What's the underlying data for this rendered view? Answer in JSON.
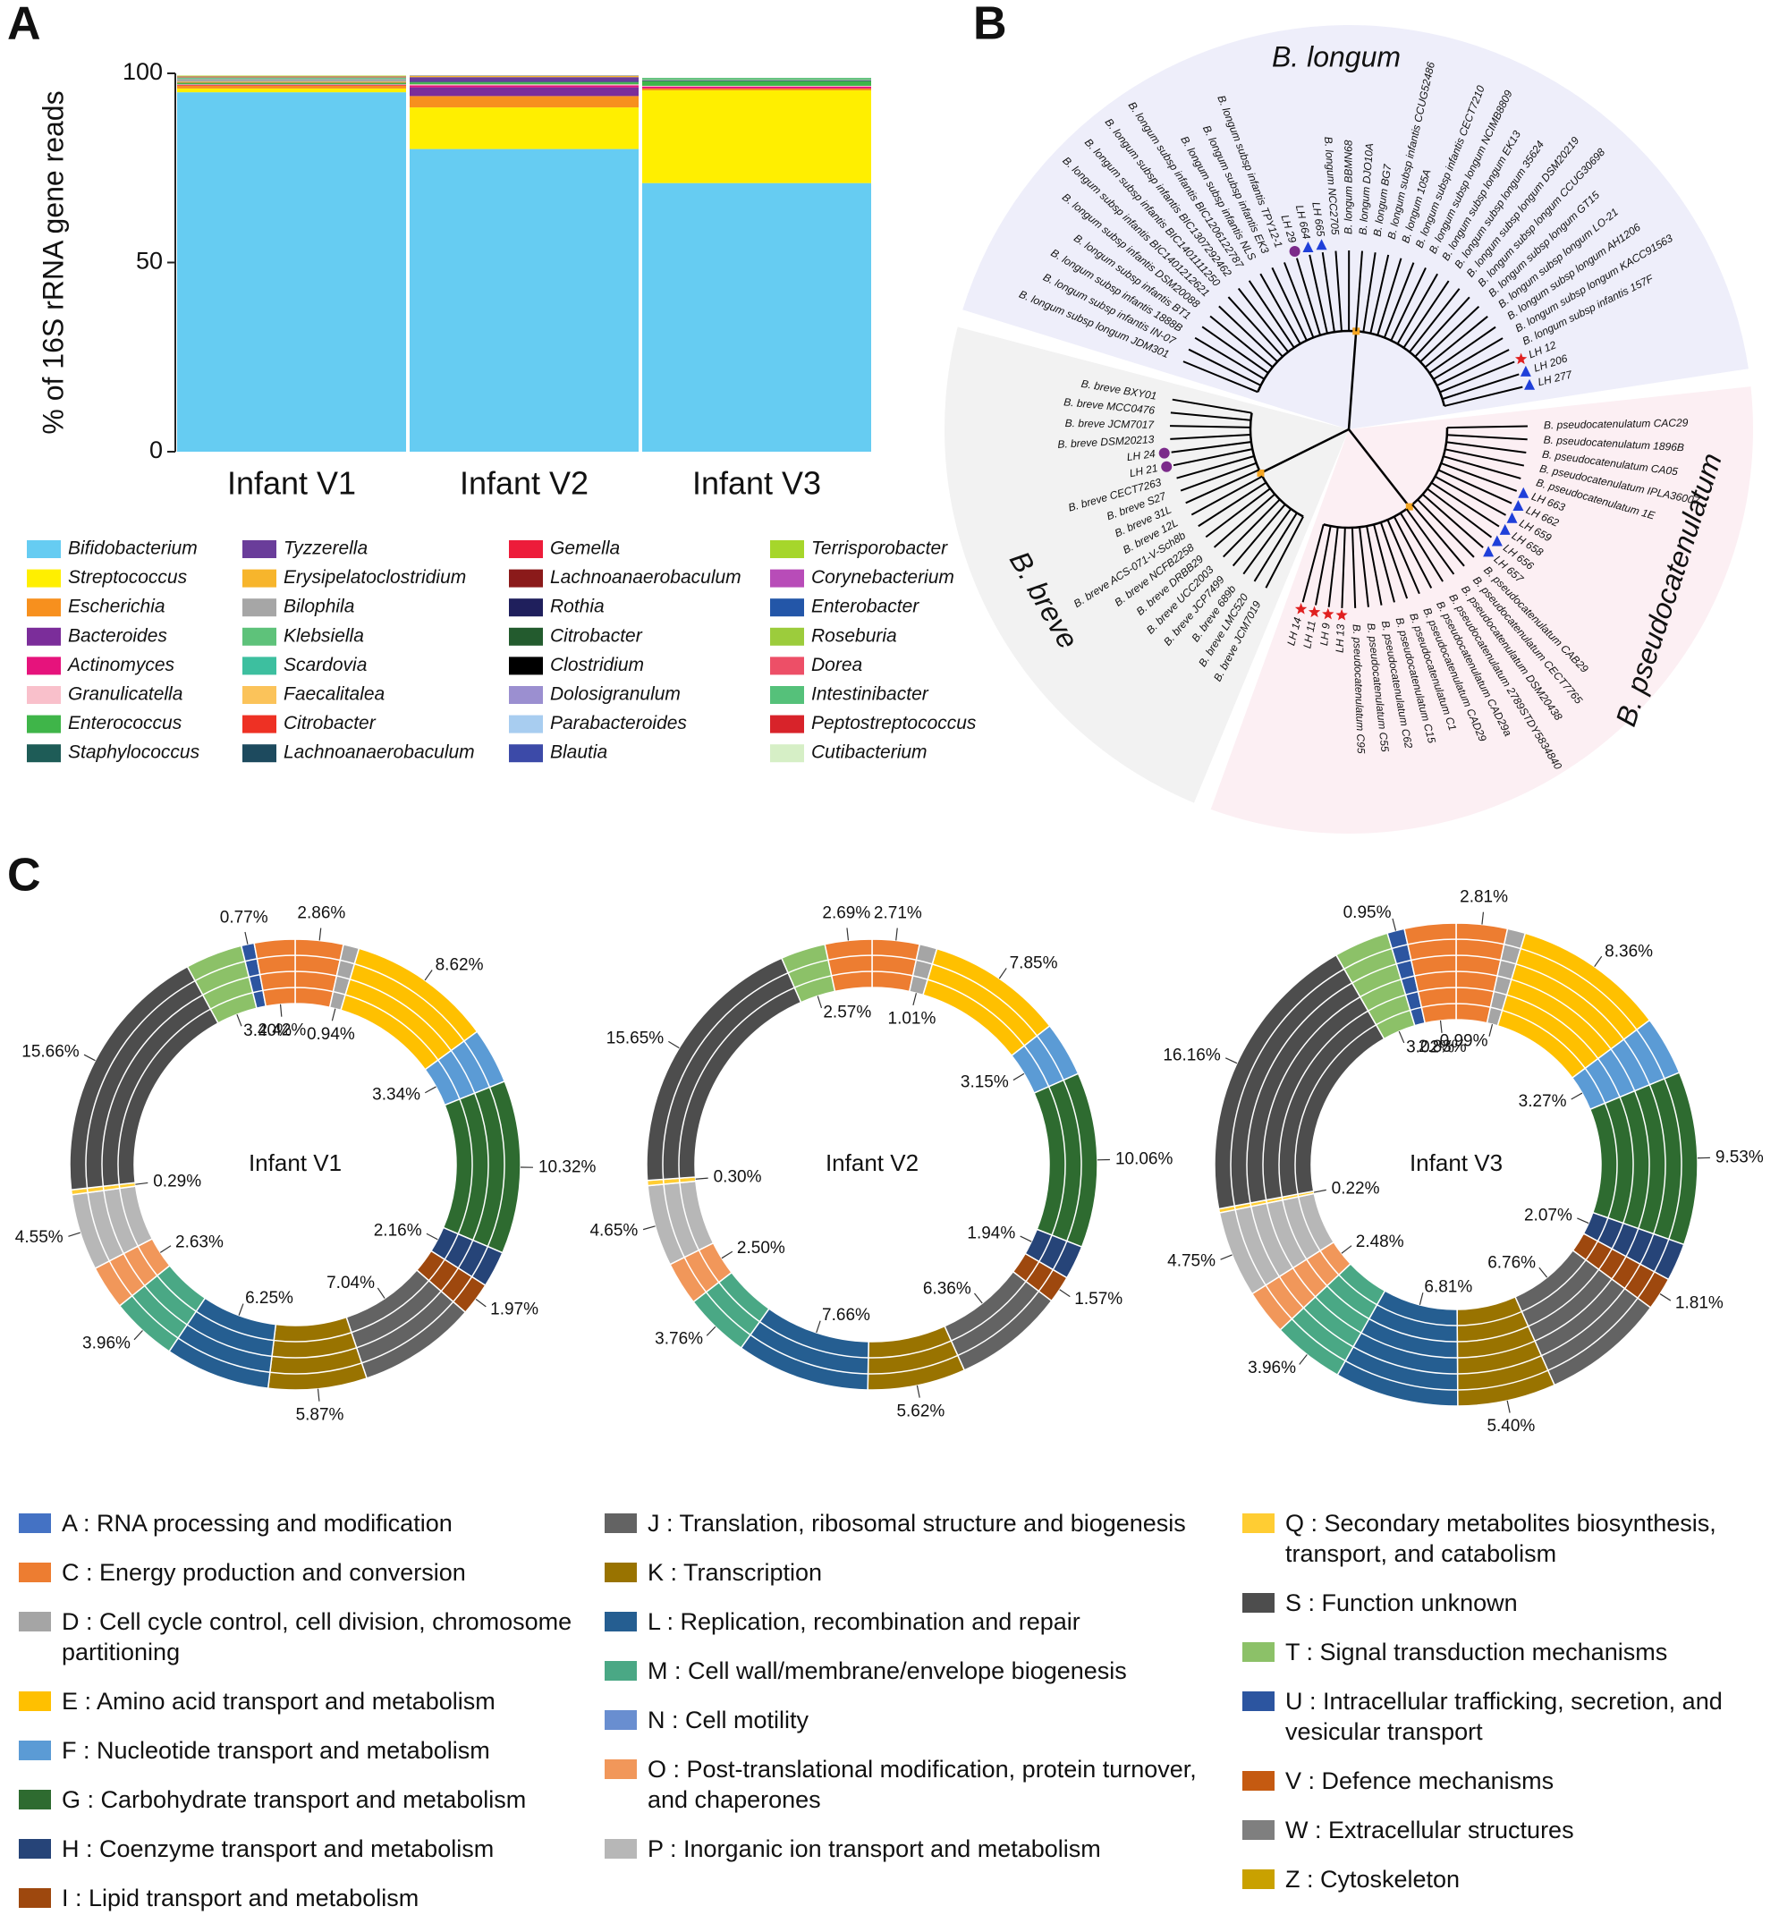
{
  "panel_labels": [
    "A",
    "B",
    "C"
  ],
  "chart_data": [
    {
      "type": "stacked_bar",
      "ylabel": "% of 16S rRNA gene reads",
      "categories": [
        "Infant V1",
        "Infant V2",
        "Infant V3"
      ],
      "ylim": [
        0,
        100
      ],
      "yticks": [
        0,
        50,
        100
      ],
      "series": [
        {
          "name": "Bifidobacterium",
          "color": "#66ccf2",
          "values": [
            95,
            80,
            71
          ]
        },
        {
          "name": "Streptococcus",
          "color": "#ffef00",
          "values": [
            1,
            11,
            24.5
          ]
        },
        {
          "name": "Escherichia",
          "color": "#f7901e",
          "values": [
            0.8,
            3,
            0.5
          ]
        },
        {
          "name": "Bacteroides",
          "color": "#7b2d9a",
          "values": [
            0,
            2.3,
            0
          ]
        },
        {
          "name": "Actinomyces",
          "color": "#e6137c",
          "values": [
            0.2,
            0.5,
            0.5
          ]
        },
        {
          "name": "Granulicatella",
          "color": "#f9c0cb",
          "values": [
            0.1,
            0.3,
            0.2
          ]
        },
        {
          "name": "Enterococcus",
          "color": "#3fb549",
          "values": [
            0.3,
            0.5,
            1.2
          ]
        },
        {
          "name": "Staphylococcus",
          "color": "#1e5c57",
          "values": [
            0.1,
            0.2,
            0.2
          ]
        },
        {
          "name": "Tyzzerella",
          "color": "#6a3d9a",
          "values": [
            0,
            1.2,
            0
          ]
        },
        {
          "name": "Erysipelatoclostridium",
          "color": "#f7b52c",
          "values": [
            0.3,
            0.3,
            0
          ]
        },
        {
          "name": "Bilophila",
          "color": "#a6a6a6",
          "values": [
            0.7,
            0.2,
            0.2
          ]
        },
        {
          "name": "Klebsiella",
          "color": "#5ec27a",
          "values": [
            0.2,
            0,
            0.5
          ]
        },
        {
          "name": "Scardovia",
          "color": "#3dbf9f",
          "values": [
            0.1,
            0,
            0
          ]
        },
        {
          "name": "Faecalitalea",
          "color": "#fbc35a",
          "values": [
            0.1,
            0,
            0
          ]
        },
        {
          "name": "Citrobacter",
          "color": "#ee3124",
          "values": [
            0.1,
            0,
            0
          ]
        },
        {
          "name": "Lachnoanaerobaculum",
          "color": "#1d4a5e",
          "values": [
            0.1,
            0,
            0
          ]
        },
        {
          "name": "Gemella",
          "color": "#ed1c3a",
          "values": [
            0.1,
            0,
            0
          ]
        },
        {
          "name": "Lachnoanaerobaculum",
          "color": "#8b1a1a",
          "values": [
            0,
            0,
            0
          ]
        },
        {
          "name": "Rothia",
          "color": "#1f1f5c",
          "values": [
            0,
            0,
            0
          ]
        },
        {
          "name": "Citrobacter",
          "color": "#235b2e",
          "values": [
            0,
            0,
            0
          ]
        },
        {
          "name": "Clostridium",
          "color": "#000000",
          "values": [
            0,
            0,
            0
          ]
        },
        {
          "name": "Dolosigranulum",
          "color": "#9b8fd0",
          "values": [
            0,
            0,
            0
          ]
        },
        {
          "name": "Parabacteroides",
          "color": "#a8cdf0",
          "values": [
            0,
            0,
            0
          ]
        },
        {
          "name": "Blautia",
          "color": "#3c4aa8",
          "values": [
            0,
            0,
            0
          ]
        },
        {
          "name": "Terrisporobacter",
          "color": "#a6d62b",
          "values": [
            0.2,
            0,
            0
          ]
        },
        {
          "name": "Corynebacterium",
          "color": "#b84cb8",
          "values": [
            0,
            0,
            0
          ]
        },
        {
          "name": "Enterobacter",
          "color": "#2356a8",
          "values": [
            0,
            0,
            0
          ]
        },
        {
          "name": "Roseburia",
          "color": "#9ccc3c",
          "values": [
            0,
            0,
            0
          ]
        },
        {
          "name": "Dorea",
          "color": "#ed4f67",
          "values": [
            0,
            0,
            0
          ]
        },
        {
          "name": "Intestinibacter",
          "color": "#55c17a",
          "values": [
            0,
            0,
            0
          ]
        },
        {
          "name": "Peptostreptococcus",
          "color": "#d8232a",
          "values": [
            0,
            0,
            0
          ]
        },
        {
          "name": "Cutibacterium",
          "color": "#d6efc6",
          "values": [
            0,
            0,
            0
          ]
        }
      ]
    },
    {
      "type": "donut",
      "title": "Infant V1",
      "rings": 4,
      "values": [
        2.86,
        0.94,
        8.62,
        3.34,
        10.32,
        2.16,
        1.97,
        7.04,
        5.87,
        6.25,
        3.96,
        2.63,
        4.55,
        0.29,
        15.66,
        3.4,
        0.77,
        2.42
      ],
      "value_labels": [
        "2.86%",
        "0.94%",
        "8.62%",
        "3.34%",
        "10.32%",
        "2.16%",
        "1.97%",
        "7.04%",
        "5.87%",
        "6.25%",
        "3.96%",
        "2.63%",
        "4.55%",
        "0.29%",
        "15.66%",
        "3.40%",
        "0.77%",
        "2.42%"
      ],
      "colors": [
        "#ed7d31",
        "#a5a5a5",
        "#ffc000",
        "#5b9bd5",
        "#2e6b30",
        "#264478",
        "#9e480e",
        "#636363",
        "#997300",
        "#255e91",
        "#4aa885",
        "#f1975a",
        "#b7b7b7",
        "#ffcd33",
        "#4d4d4d",
        "#8cc168",
        "#2c55a0",
        "#ed7d31"
      ]
    },
    {
      "type": "donut",
      "title": "Infant V2",
      "rings": 3,
      "values": [
        2.71,
        1.01,
        7.85,
        3.15,
        10.06,
        1.94,
        1.57,
        6.36,
        5.62,
        7.66,
        3.76,
        2.5,
        4.65,
        0.3,
        15.65,
        2.57,
        2.69
      ],
      "value_labels": [
        "2.71%",
        "1.01%",
        "7.85%",
        "3.15%",
        "10.06%",
        "1.94%",
        "1.57%",
        "6.36%",
        "5.62%",
        "7.66%",
        "3.76%",
        "2.50%",
        "4.65%",
        "0.30%",
        "15.65%",
        "2.57%",
        "2.69%"
      ],
      "colors": [
        "#ed7d31",
        "#a5a5a5",
        "#ffc000",
        "#5b9bd5",
        "#2e6b30",
        "#264478",
        "#9e480e",
        "#636363",
        "#997300",
        "#255e91",
        "#4aa885",
        "#f1975a",
        "#b7b7b7",
        "#ffcd33",
        "#4d4d4d",
        "#8cc168",
        "#ed7d31"
      ]
    },
    {
      "type": "donut",
      "title": "Infant V3",
      "rings": 6,
      "values": [
        2.81,
        0.99,
        8.36,
        3.27,
        9.53,
        2.07,
        1.81,
        6.76,
        5.4,
        6.81,
        3.96,
        2.48,
        4.75,
        0.22,
        16.16,
        3.02,
        0.95,
        2.83
      ],
      "value_labels": [
        "2.81%",
        "0.99%",
        "8.36%",
        "3.27%",
        "9.53%",
        "2.07%",
        "1.81%",
        "6.76%",
        "5.40%",
        "6.81%",
        "3.96%",
        "2.48%",
        "4.75%",
        "0.22%",
        "16.16%",
        "3.02%",
        "0.95%",
        "2.83%"
      ],
      "colors": [
        "#ed7d31",
        "#a5a5a5",
        "#ffc000",
        "#5b9bd5",
        "#2e6b30",
        "#264478",
        "#9e480e",
        "#636363",
        "#997300",
        "#255e91",
        "#4aa885",
        "#f1975a",
        "#b7b7b7",
        "#ffcd33",
        "#4d4d4d",
        "#8cc168",
        "#2c55a0",
        "#ed7d31"
      ]
    }
  ],
  "tree": {
    "clades": [
      {
        "name": "B. pseudocatenulatum",
        "color": "#fcefF3",
        "leaves": [
          {
            "label": "B. pseudocatenulatum CAC29"
          },
          {
            "label": "B. pseudocatenulatum 1896B"
          },
          {
            "label": "B. pseudocatenulatum CA05"
          },
          {
            "label": "B. pseudocatenulatum IPLA36007"
          },
          {
            "label": "B. pseudocatenulatum 1E"
          },
          {
            "label": "LH 663",
            "marker": "triangle"
          },
          {
            "label": "LH 662",
            "marker": "triangle"
          },
          {
            "label": "LH 659",
            "marker": "triangle"
          },
          {
            "label": "LH 658",
            "marker": "triangle"
          },
          {
            "label": "LH 656",
            "marker": "triangle"
          },
          {
            "label": "LH 657",
            "marker": "triangle"
          },
          {
            "label": "B. pseudocatenulatum CAB29"
          },
          {
            "label": "B. pseudocatenulatum CECT7765"
          },
          {
            "label": "B. pseudocatenulatum DSM20438"
          },
          {
            "label": "B. pseudocatenulatum 2789STDY5834840"
          },
          {
            "label": "B. pseudocatenulatum CAD29a"
          },
          {
            "label": "B. pseudocatenulatum CAD29"
          },
          {
            "label": "B. pseudocatenulatum C1"
          },
          {
            "label": "B. pseudocatenulatum C15"
          },
          {
            "label": "B. pseudocatenulatum C62"
          },
          {
            "label": "B. pseudocatenulatum C55"
          },
          {
            "label": "B. pseudocatenulatum C95"
          },
          {
            "label": "LH 13",
            "marker": "star"
          },
          {
            "label": "LH 9",
            "marker": "star"
          },
          {
            "label": "LH 11",
            "marker": "star"
          },
          {
            "label": "LH 14",
            "marker": "star"
          }
        ]
      },
      {
        "name": "B. breve",
        "color": "#f2f2f2",
        "leaves": [
          {
            "label": "B. breve JCM7019"
          },
          {
            "label": "B. breve LMC520"
          },
          {
            "label": "B. breve 689b"
          },
          {
            "label": "B. breve JCP7499"
          },
          {
            "label": "B. breve UCC2003"
          },
          {
            "label": "B. breve DRBB29"
          },
          {
            "label": "B. breve NCFB2258"
          },
          {
            "label": "B. breve ACS-071-V-Sch8b"
          },
          {
            "label": "B. breve 12L"
          },
          {
            "label": "B. breve 31L"
          },
          {
            "label": "B. breve S27"
          },
          {
            "label": "B. breve CECT7263"
          },
          {
            "label": "LH 21",
            "marker": "circle"
          },
          {
            "label": "LH 24",
            "marker": "circle"
          },
          {
            "label": "B. breve DSM20213"
          },
          {
            "label": "B. breve JCM7017"
          },
          {
            "label": "B. breve MCC0476"
          },
          {
            "label": "B. breve BXY01"
          }
        ]
      },
      {
        "name": "B. longum",
        "color": "#eeeefa",
        "leaves": [
          {
            "label": "B. longum subsp longum JDM301"
          },
          {
            "label": "B. longum subsp infantis IN-07"
          },
          {
            "label": "B. longum subsp infantis 1888B"
          },
          {
            "label": "B. longum subsp infantis BT1"
          },
          {
            "label": "B. longum subsp infantis DSM20088"
          },
          {
            "label": "B. longum subsp infantis BIC1401212621"
          },
          {
            "label": "B. longum subsp infantis BIC1401111250"
          },
          {
            "label": "B. longum subsp infantis BIC1307292462"
          },
          {
            "label": "B. longum subsp infantis BIC1206122787"
          },
          {
            "label": "B. longum subsp infantis NLS"
          },
          {
            "label": "B. longum subsp infantis EK3"
          },
          {
            "label": "B. longum subsp infantis TPY12-1"
          },
          {
            "label": "LH 29",
            "marker": "circle"
          },
          {
            "label": "LH 664",
            "marker": "triangle"
          },
          {
            "label": "LH 665",
            "marker": "triangle"
          },
          {
            "label": "B. longum NCC2705"
          },
          {
            "label": "B. longum BBMN68"
          },
          {
            "label": "B. longum DJO10A"
          },
          {
            "label": "B. longum BG7"
          },
          {
            "label": "B. longum subsp infantis CCUG52486"
          },
          {
            "label": "B. longum 105A"
          },
          {
            "label": "B. longum subsp infantis CECT7210"
          },
          {
            "label": "B. longum subsp longum NCIMB8809"
          },
          {
            "label": "B. longum subsp longum EK13"
          },
          {
            "label": "B. longum subsp longum 35624"
          },
          {
            "label": "B. longum subsp longum DSM20219"
          },
          {
            "label": "B. longum subsp longum CCUG30698"
          },
          {
            "label": "B. longum subsp longum GT15"
          },
          {
            "label": "B. longum subsp longum LO-21"
          },
          {
            "label": "B. longum subsp longum AH1206"
          },
          {
            "label": "B. longum subsp longum KACC91563"
          },
          {
            "label": "B. longum subsp infantis 157F"
          },
          {
            "label": "LH 12",
            "marker": "star"
          },
          {
            "label": "LH 206",
            "marker": "triangle"
          },
          {
            "label": "LH 277",
            "marker": "triangle"
          }
        ]
      }
    ]
  },
  "cog_legend": [
    {
      "label": "A : RNA processing and modification",
      "color": "#4472c4"
    },
    {
      "label": "C : Energy production and conversion",
      "color": "#ed7d31"
    },
    {
      "label": "D : Cell cycle control, cell division, chromosome partitioning",
      "color": "#a5a5a5"
    },
    {
      "label": "E : Amino acid transport and metabolism",
      "color": "#ffc000"
    },
    {
      "label": "F : Nucleotide transport and metabolism",
      "color": "#5b9bd5"
    },
    {
      "label": "G : Carbohydrate transport and metabolism",
      "color": "#2e6b30"
    },
    {
      "label": "H : Coenzyme transport and metabolism",
      "color": "#264478"
    },
    {
      "label": "I : Lipid transport and metabolism",
      "color": "#9e480e"
    },
    {
      "label": "J : Translation, ribosomal structure and biogenesis",
      "color": "#636363"
    },
    {
      "label": "K : Transcription",
      "color": "#997300"
    },
    {
      "label": "L : Replication, recombination and repair",
      "color": "#255e91"
    },
    {
      "label": "M : Cell wall/membrane/envelope biogenesis",
      "color": "#4aa885"
    },
    {
      "label": "N :  Cell motility",
      "color": "#698ed0"
    },
    {
      "label": "O : Post-translational modification, protein turnover, and chaperones",
      "color": "#f1975a"
    },
    {
      "label": "P : Inorganic ion transport and metabolism",
      "color": "#b7b7b7"
    },
    {
      "label": "Q : Secondary metabolites biosynthesis, transport, and catabolism",
      "color": "#ffcd33"
    },
    {
      "label": "S : Function unknown",
      "color": "#4d4d4d"
    },
    {
      "label": "T : Signal transduction mechanisms",
      "color": "#8cc168"
    },
    {
      "label": "U :  Intracellular trafficking, secretion, and vesicular transport",
      "color": "#2c55a0"
    },
    {
      "label": "V : Defence mechanisms",
      "color": "#c55a11"
    },
    {
      "label": "W : Extracellular structures",
      "color": "#7f7f7f"
    },
    {
      "label": "Z : Cytoskeleton",
      "color": "#c9a100"
    }
  ]
}
